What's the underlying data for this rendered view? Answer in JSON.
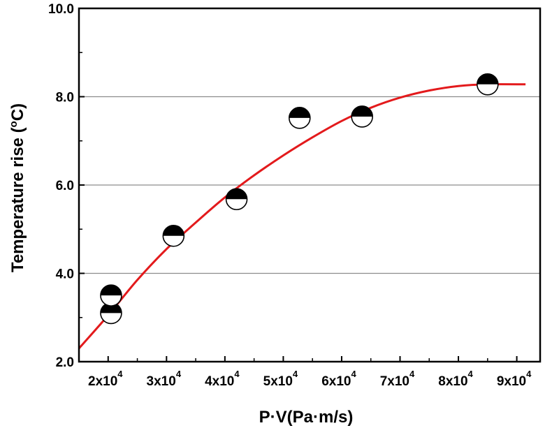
{
  "chart_data": {
    "type": "scatter",
    "title": "",
    "xlabel": "P·V(Pa·m/s)",
    "ylabel_main": "Temperature rise (",
    "ylabel_deg": "o",
    "ylabel_unit": "C)",
    "xlim": [
      15000,
      94000
    ],
    "ylim": [
      2.0,
      10.0
    ],
    "grid": "horizontal",
    "legend": "none",
    "x_ticks": [
      {
        "value": 20000,
        "base": "2x10",
        "exp": "4"
      },
      {
        "value": 30000,
        "base": "3x10",
        "exp": "4"
      },
      {
        "value": 40000,
        "base": "4x10",
        "exp": "4"
      },
      {
        "value": 50000,
        "base": "5x10",
        "exp": "4"
      },
      {
        "value": 60000,
        "base": "6x10",
        "exp": "4"
      },
      {
        "value": 70000,
        "base": "7x10",
        "exp": "4"
      },
      {
        "value": 80000,
        "base": "8x10",
        "exp": "4"
      },
      {
        "value": 90000,
        "base": "9x10",
        "exp": "4"
      }
    ],
    "y_ticks": [
      {
        "value": 2.0,
        "label": "2.0"
      },
      {
        "value": 4.0,
        "label": "4.0"
      },
      {
        "value": 6.0,
        "label": "6.0"
      },
      {
        "value": 8.0,
        "label": "8.0"
      },
      {
        "value": 10.0,
        "label": "10.0"
      }
    ],
    "series": [
      {
        "marker": "half-filled-circle",
        "points": [
          {
            "x": 20500,
            "y": 3.1
          },
          {
            "x": 20500,
            "y": 3.5
          },
          {
            "x": 31200,
            "y": 4.85
          },
          {
            "x": 42000,
            "y": 5.68
          },
          {
            "x": 52800,
            "y": 7.52
          },
          {
            "x": 63500,
            "y": 7.55
          },
          {
            "x": 85000,
            "y": 8.28
          }
        ]
      }
    ],
    "fit_curve": {
      "color": "#e31a1c",
      "points": [
        {
          "x": 15000,
          "y": 2.3
        },
        {
          "x": 20000,
          "y": 3.05
        },
        {
          "x": 25000,
          "y": 3.85
        },
        {
          "x": 30000,
          "y": 4.55
        },
        {
          "x": 35000,
          "y": 5.15
        },
        {
          "x": 40000,
          "y": 5.72
        },
        {
          "x": 45000,
          "y": 6.22
        },
        {
          "x": 50000,
          "y": 6.67
        },
        {
          "x": 55000,
          "y": 7.08
        },
        {
          "x": 60000,
          "y": 7.45
        },
        {
          "x": 65000,
          "y": 7.75
        },
        {
          "x": 70000,
          "y": 7.98
        },
        {
          "x": 75000,
          "y": 8.14
        },
        {
          "x": 80000,
          "y": 8.24
        },
        {
          "x": 85000,
          "y": 8.28
        },
        {
          "x": 91500,
          "y": 8.28
        }
      ]
    }
  }
}
